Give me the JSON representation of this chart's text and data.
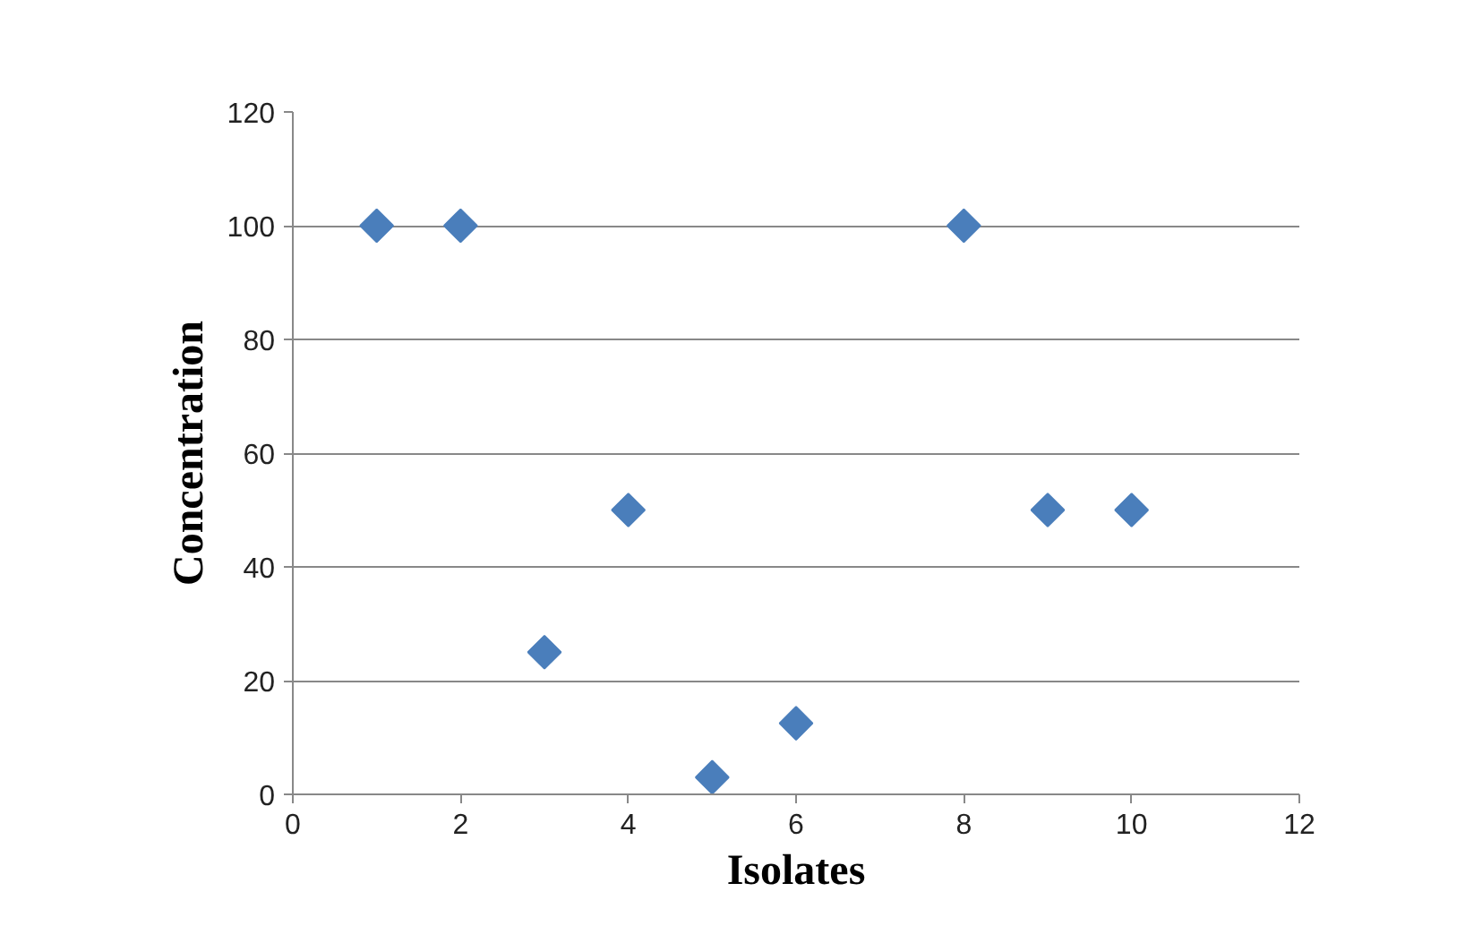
{
  "chart_data": {
    "type": "scatter",
    "xlabel": "Isolates",
    "ylabel": "Concentration",
    "x": [
      1,
      2,
      3,
      4,
      5,
      6,
      8,
      9,
      10
    ],
    "series": [
      {
        "color": "#4a7ebb",
        "values": [
          100,
          100,
          25,
          50,
          3,
          12.5,
          100,
          50,
          50
        ]
      }
    ],
    "xlim": [
      0,
      12
    ],
    "xticks": [
      0,
      2,
      4,
      6,
      8,
      10,
      12
    ],
    "ylim": [
      0,
      120
    ],
    "yticks": [
      0,
      20,
      40,
      60,
      80,
      100,
      120
    ],
    "grid": "y",
    "marker": "diamond"
  }
}
